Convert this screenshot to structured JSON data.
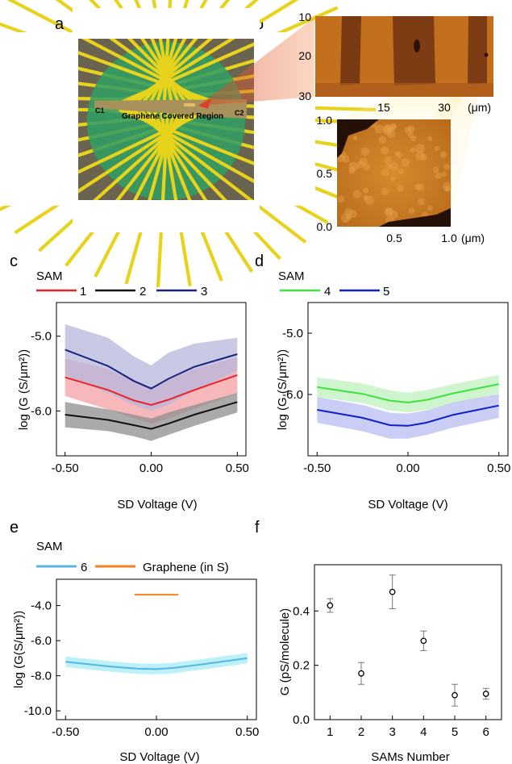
{
  "panel_labels": {
    "a": "a",
    "b": "b",
    "c": "c",
    "d": "d",
    "e": "e",
    "f": "f"
  },
  "panel_a": {
    "left_contact": "C1",
    "right_contact": "C2",
    "region_label": "Graphene Covered  Region",
    "colors": {
      "substrate": "#e7d21c",
      "dark_finger": "#6a6350",
      "graphene": "#2f9f64",
      "channel": "#a8915a"
    }
  },
  "panel_b": {
    "top_scan": {
      "y_ticks": [
        "10",
        "20",
        "30"
      ],
      "x_ticks": [
        "15",
        "30"
      ],
      "unit": "(μm)"
    },
    "zoom_scan": {
      "y_ticks": [
        "1.0",
        "0.5",
        "0.0"
      ],
      "x_ticks": [
        "0.5",
        "1.0"
      ],
      "unit": "(μm)"
    }
  },
  "chart_data": [
    {
      "id": "c",
      "type": "line",
      "legend_title": "SAM",
      "xlabel": "SD Voltage (V)",
      "ylabel": "log (G (S/μm²))",
      "xlim": [
        -0.55,
        0.55
      ],
      "ylim": [
        -6.6,
        -4.55
      ],
      "x_ticks": [
        "-0.50",
        "0.00",
        "0.50"
      ],
      "x_tick_values": [
        -0.5,
        0,
        0.5
      ],
      "y_ticks": [
        "-5.0",
        "-6.0"
      ],
      "y_tick_values": [
        -5.0,
        -6.0
      ],
      "x": [
        -0.5,
        -0.25,
        -0.1,
        0.0,
        0.1,
        0.25,
        0.5
      ],
      "series": [
        {
          "name": "1",
          "color": "#e8232a",
          "band": "#f4a0a4",
          "values": [
            -5.55,
            -5.72,
            -5.86,
            -5.92,
            -5.85,
            -5.72,
            -5.52
          ],
          "upper": [
            -5.3,
            -5.44,
            -5.6,
            -5.68,
            -5.58,
            -5.44,
            -5.28
          ],
          "lower": [
            -5.8,
            -5.98,
            -6.1,
            -6.17,
            -6.1,
            -5.97,
            -5.77
          ]
        },
        {
          "name": "2",
          "color": "#111111",
          "band": "#8d8d8d",
          "values": [
            -6.05,
            -6.12,
            -6.19,
            -6.24,
            -6.17,
            -6.05,
            -5.88
          ],
          "upper": [
            -5.88,
            -5.98,
            -6.05,
            -6.1,
            -6.02,
            -5.92,
            -5.76
          ],
          "lower": [
            -6.22,
            -6.27,
            -6.34,
            -6.4,
            -6.32,
            -6.2,
            -6.02
          ]
        },
        {
          "name": "3",
          "color": "#1a237e",
          "band": "#b7b7dc",
          "values": [
            -5.18,
            -5.4,
            -5.6,
            -5.7,
            -5.57,
            -5.41,
            -5.24
          ],
          "upper": [
            -4.84,
            -5.02,
            -5.27,
            -5.39,
            -5.22,
            -5.1,
            -5.02
          ],
          "lower": [
            -5.52,
            -5.76,
            -5.92,
            -6.0,
            -5.92,
            -5.73,
            -5.46
          ]
        }
      ]
    },
    {
      "id": "d",
      "type": "line",
      "legend_title": "SAM",
      "xlabel": "SD Voltage (V)",
      "ylabel": "log (G (S/μm²))",
      "xlim": [
        -0.55,
        0.55
      ],
      "ylim": [
        -7.0,
        -4.5
      ],
      "x_ticks": [
        "-0.50",
        "0.00",
        "0.50"
      ],
      "x_tick_values": [
        -0.5,
        0,
        0.5
      ],
      "y_ticks": [
        "-5.0",
        "-6.0"
      ],
      "y_tick_values": [
        -5.0,
        -6.0
      ],
      "x": [
        -0.5,
        -0.25,
        -0.1,
        0.0,
        0.1,
        0.25,
        0.5
      ],
      "series": [
        {
          "name": "4",
          "color": "#3fe23f",
          "band": "#bdf2bd",
          "values": [
            -5.88,
            -5.99,
            -6.1,
            -6.13,
            -6.09,
            -5.98,
            -5.83
          ],
          "upper": [
            -5.72,
            -5.82,
            -5.93,
            -5.97,
            -5.93,
            -5.83,
            -5.68
          ],
          "lower": [
            -6.04,
            -6.14,
            -6.26,
            -6.29,
            -6.25,
            -6.15,
            -5.98
          ]
        },
        {
          "name": "5",
          "color": "#1020c8",
          "band": "#b9bdf0",
          "values": [
            -6.25,
            -6.38,
            -6.5,
            -6.51,
            -6.46,
            -6.33,
            -6.18
          ],
          "upper": [
            -6.04,
            -6.17,
            -6.3,
            -6.31,
            -6.26,
            -6.13,
            -5.99
          ],
          "lower": [
            -6.46,
            -6.6,
            -6.72,
            -6.72,
            -6.66,
            -6.54,
            -6.38
          ]
        }
      ]
    },
    {
      "id": "e",
      "type": "line",
      "legend_title": "SAM",
      "xlabel": "SD Voltage (V)",
      "ylabel": "log (G(S/μm²))",
      "xlim": [
        -0.55,
        0.55
      ],
      "ylim": [
        -10.5,
        -2.5
      ],
      "x_ticks": [
        "-0.50",
        "0.00",
        "0.50"
      ],
      "x_tick_values": [
        -0.5,
        0,
        0.5
      ],
      "y_ticks": [
        "-4.0",
        "-6.0",
        "-8.0",
        "-10.0"
      ],
      "y_tick_values": [
        -4.0,
        -6.0,
        -8.0,
        -10.0
      ],
      "x": [
        -0.5,
        -0.25,
        -0.1,
        0.0,
        0.1,
        0.25,
        0.5
      ],
      "series": [
        {
          "name": "6",
          "color": "#5ab4e6",
          "band": "#a6eef4",
          "values": [
            -7.2,
            -7.48,
            -7.6,
            -7.62,
            -7.55,
            -7.35,
            -7.0
          ],
          "upper": [
            -6.9,
            -7.18,
            -7.3,
            -7.32,
            -7.25,
            -7.05,
            -6.7
          ],
          "lower": [
            -7.5,
            -7.78,
            -7.9,
            -7.92,
            -7.85,
            -7.65,
            -7.3
          ]
        },
        {
          "name": "Graphene (in S)",
          "color": "#f5821f",
          "x": [
            -0.12,
            0.12
          ],
          "values": [
            -3.38,
            -3.38
          ]
        }
      ]
    },
    {
      "id": "f",
      "type": "scatter",
      "xlabel": "SAMs Number",
      "ylabel": "G (pS/molecule)",
      "xlim": [
        0.5,
        6.5
      ],
      "ylim": [
        0,
        0.57
      ],
      "x_ticks": [
        "1",
        "2",
        "3",
        "4",
        "5",
        "6"
      ],
      "x_tick_values": [
        1,
        2,
        3,
        4,
        5,
        6
      ],
      "y_ticks": [
        "0.0",
        "0.2",
        "0.4"
      ],
      "y_tick_values": [
        0,
        0.2,
        0.4
      ],
      "x": [
        1,
        2,
        3,
        4,
        5,
        6
      ],
      "values": [
        0.42,
        0.17,
        0.47,
        0.29,
        0.09,
        0.095
      ],
      "errors": [
        0.025,
        0.04,
        0.062,
        0.036,
        0.04,
        0.02
      ]
    }
  ]
}
